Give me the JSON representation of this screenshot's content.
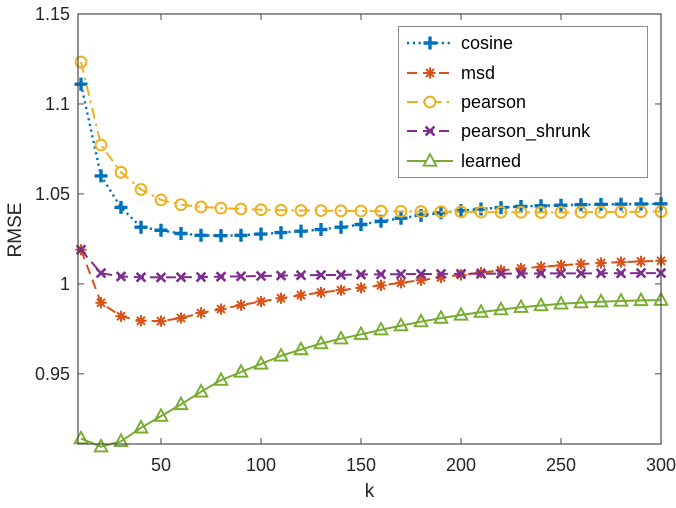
{
  "figure": {
    "background": "#ffffff",
    "axis_color": "#4a4a4a",
    "text_color": "#262626"
  },
  "legend": {
    "position": "northeast-inside",
    "entries": [
      {
        "label": "cosine",
        "series": "cosine"
      },
      {
        "label": "msd",
        "series": "msd"
      },
      {
        "label": "pearson",
        "series": "pearson"
      },
      {
        "label": "pearson_shrunk",
        "series": "pearson_shrunk"
      },
      {
        "label": "learned",
        "series": "learned"
      }
    ]
  },
  "chart_data": {
    "type": "line",
    "title": "",
    "xlabel": "k",
    "ylabel": "RMSE",
    "grid": false,
    "legend_position": "northeast-inside",
    "xlim": [
      8.5,
      300
    ],
    "ylim": [
      0.911,
      1.15
    ],
    "xticks": [
      50,
      100,
      150,
      200,
      250,
      300
    ],
    "xtick_labels": [
      "50",
      "100",
      "150",
      "200",
      "250",
      "300"
    ],
    "yticks": [
      0.95,
      1.0,
      1.05,
      1.1,
      1.15
    ],
    "ytick_labels": [
      "0.95",
      "1",
      "1.05",
      "1.1",
      "1.15"
    ],
    "x": [
      10,
      20,
      30,
      40,
      50,
      60,
      70,
      80,
      90,
      100,
      110,
      120,
      130,
      140,
      150,
      160,
      170,
      180,
      190,
      200,
      210,
      220,
      230,
      240,
      250,
      260,
      270,
      280,
      290,
      300
    ],
    "series": [
      {
        "name": "cosine",
        "color": "#0072BD",
        "linestyle": "dotted",
        "marker": "plus",
        "values": [
          1.111,
          1.06,
          1.0425,
          1.0315,
          1.0298,
          1.028,
          1.027,
          1.0268,
          1.027,
          1.0277,
          1.0285,
          1.0293,
          1.0302,
          1.0315,
          1.033,
          1.0348,
          1.0365,
          1.0381,
          1.0395,
          1.0407,
          1.0416,
          1.0424,
          1.043,
          1.0434,
          1.0437,
          1.044,
          1.0442,
          1.0443,
          1.0444,
          1.0445
        ]
      },
      {
        "name": "msd",
        "color": "#D95319",
        "linestyle": "dashed",
        "marker": "asterisk",
        "values": [
          1.019,
          0.9895,
          0.982,
          0.9795,
          0.9793,
          0.981,
          0.9838,
          0.986,
          0.9882,
          0.9902,
          0.992,
          0.9937,
          0.9952,
          0.9965,
          0.9978,
          0.9992,
          1.0006,
          1.0021,
          1.0036,
          1.005,
          1.0063,
          1.0075,
          1.0086,
          1.0095,
          1.0103,
          1.011,
          1.0116,
          1.0121,
          1.0125,
          1.0128
        ]
      },
      {
        "name": "pearson",
        "color": "#EDB120",
        "linestyle": "dashdot",
        "marker": "circle",
        "values": [
          1.1233,
          1.0772,
          1.062,
          1.0525,
          1.0467,
          1.044,
          1.0428,
          1.0421,
          1.0416,
          1.0412,
          1.041,
          1.0408,
          1.0407,
          1.0406,
          1.0405,
          1.0404,
          1.0403,
          1.0402,
          1.0401,
          1.04,
          1.0399,
          1.0398,
          1.0398,
          1.0397,
          1.0397,
          1.0398,
          1.0399,
          1.04,
          1.0401,
          1.0402
        ]
      },
      {
        "name": "pearson_shrunk",
        "color": "#7E2F8E",
        "linestyle": "dashed",
        "marker": "x",
        "values": [
          1.019,
          1.006,
          1.0041,
          1.0037,
          1.0036,
          1.0037,
          1.0038,
          1.004,
          1.0042,
          1.0044,
          1.0046,
          1.0048,
          1.0049,
          1.005,
          1.0052,
          1.0053,
          1.0054,
          1.0055,
          1.0055,
          1.0056,
          1.0056,
          1.0057,
          1.0057,
          1.0058,
          1.0058,
          1.0058,
          1.0059,
          1.0059,
          1.006,
          1.006
        ]
      },
      {
        "name": "learned",
        "color": "#77AC30",
        "linestyle": "solid",
        "marker": "triangle-up",
        "values": [
          0.914,
          0.9095,
          0.9125,
          0.92,
          0.9265,
          0.933,
          0.94,
          0.9465,
          0.951,
          0.9555,
          0.96,
          0.9635,
          0.9668,
          0.9695,
          0.972,
          0.9745,
          0.9768,
          0.979,
          0.981,
          0.9827,
          0.9843,
          0.9857,
          0.987,
          0.988,
          0.9889,
          0.9896,
          0.9901,
          0.9905,
          0.9908,
          0.991
        ]
      }
    ]
  }
}
